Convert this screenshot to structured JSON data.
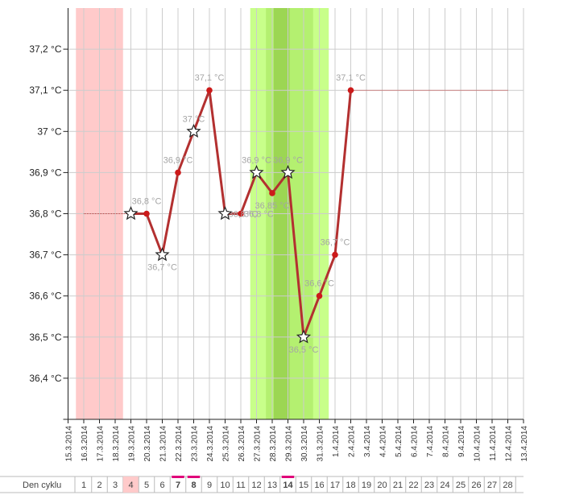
{
  "chart_data": {
    "type": "line",
    "title": "",
    "xlabel": "",
    "ylabel": "",
    "ylim": [
      36.3,
      37.3
    ],
    "y_ticks": [
      "36,4 °C",
      "36,5 °C",
      "36,6 °C",
      "36,7 °C",
      "36,8 °C",
      "36,9 °C",
      "37 °C",
      "37,1 °C",
      "37,2 °C"
    ],
    "y_tick_values": [
      36.4,
      36.5,
      36.6,
      36.7,
      36.8,
      36.9,
      37.0,
      37.1,
      37.2
    ],
    "x": [
      "15.3.2014",
      "16.3.2014",
      "17.3.2014",
      "18.3.2014",
      "19.3.2014",
      "20.3.2014",
      "21.3.2014",
      "22.3.2014",
      "23.3.2014",
      "24.3.2014",
      "25.3.2014",
      "26.3.2014",
      "27.3.2014",
      "28.3.2014",
      "29.3.2014",
      "30.3.2014",
      "31.3.2014",
      "1.4.2014",
      "2.4.2014",
      "3.4.2014",
      "4.4.2014",
      "5.4.2014",
      "6.4.2014",
      "7.4.2014",
      "8.4.2014",
      "9.4.2014",
      "10.4.2014",
      "11.4.2014",
      "12.4.2014",
      "13.4.2014"
    ],
    "grid": true,
    "series": [
      {
        "color": "#b33030",
        "points": [
          {
            "x": "19.3.2014",
            "y": 36.8,
            "marker": "star",
            "label": ""
          },
          {
            "x": "20.3.2014",
            "y": 36.8,
            "marker": "dot",
            "label": "36,8 °C"
          },
          {
            "x": "21.3.2014",
            "y": 36.7,
            "marker": "star",
            "label": "36,7 °C"
          },
          {
            "x": "22.3.2014",
            "y": 36.9,
            "marker": "dot",
            "label": "36,9 °C"
          },
          {
            "x": "23.3.2014",
            "y": 37.0,
            "marker": "star",
            "label": "37 °C"
          },
          {
            "x": "24.3.2014",
            "y": 37.1,
            "marker": "dot",
            "label": "37,1 °C"
          },
          {
            "x": "25.3.2014",
            "y": 36.8,
            "marker": "star",
            "label": "36,8 °C"
          },
          {
            "x": "26.3.2014",
            "y": 36.8,
            "marker": "dot",
            "label": "36,8 °C"
          },
          {
            "x": "27.3.2014",
            "y": 36.9,
            "marker": "star",
            "label": "36,9 °C"
          },
          {
            "x": "28.3.2014",
            "y": 36.85,
            "marker": "dot",
            "label": "36,85 °C"
          },
          {
            "x": "29.3.2014",
            "y": 36.9,
            "marker": "star",
            "label": "36,9 °C"
          },
          {
            "x": "30.3.2014",
            "y": 36.5,
            "marker": "star",
            "label": "36,5 °C"
          },
          {
            "x": "31.3.2014",
            "y": 36.6,
            "marker": "dot",
            "label": "36,6 °C"
          },
          {
            "x": "1.4.2014",
            "y": 36.7,
            "marker": "dot",
            "label": "36,7 °C"
          },
          {
            "x": "2.4.2014",
            "y": 37.1,
            "marker": "dot",
            "label": "37,1 °C"
          }
        ]
      }
    ],
    "reference_lines": [
      {
        "y": 36.8,
        "from": "16.3.2014",
        "to": "19.3.2014",
        "color": "#c03030"
      },
      {
        "y": 37.1,
        "from": "2.4.2014",
        "to": "12.4.2014",
        "color": "#c03030"
      }
    ],
    "bands": [
      {
        "from": 0.5,
        "to": 3.5,
        "color": "#ffcaca",
        "meaning": "menstruation"
      },
      {
        "from": 11.6,
        "to": 16.6,
        "color": "#c8ff8a",
        "meaning": "fertile window"
      },
      {
        "from": 12.6,
        "to": 15.6,
        "color": "#b4f070",
        "meaning": "fertile window"
      },
      {
        "from": 13.1,
        "to": 14.1,
        "color": "#9cd653",
        "meaning": "ovulation"
      }
    ]
  },
  "cycle_row": {
    "label": "Den cyklu",
    "days": [
      "1",
      "2",
      "3",
      "4",
      "5",
      "6",
      "7",
      "8",
      "9",
      "10",
      "11",
      "12",
      "13",
      "14",
      "15",
      "16",
      "17",
      "18",
      "19",
      "20",
      "21",
      "22",
      "23",
      "24",
      "25",
      "26",
      "27",
      "28"
    ],
    "highlighted_day": "4",
    "highlight_color": "#ffcaca",
    "marked_days": [
      "7",
      "8",
      "14"
    ],
    "mark_color": "#e0007a",
    "bold_days": [
      "7",
      "8",
      "14"
    ]
  }
}
